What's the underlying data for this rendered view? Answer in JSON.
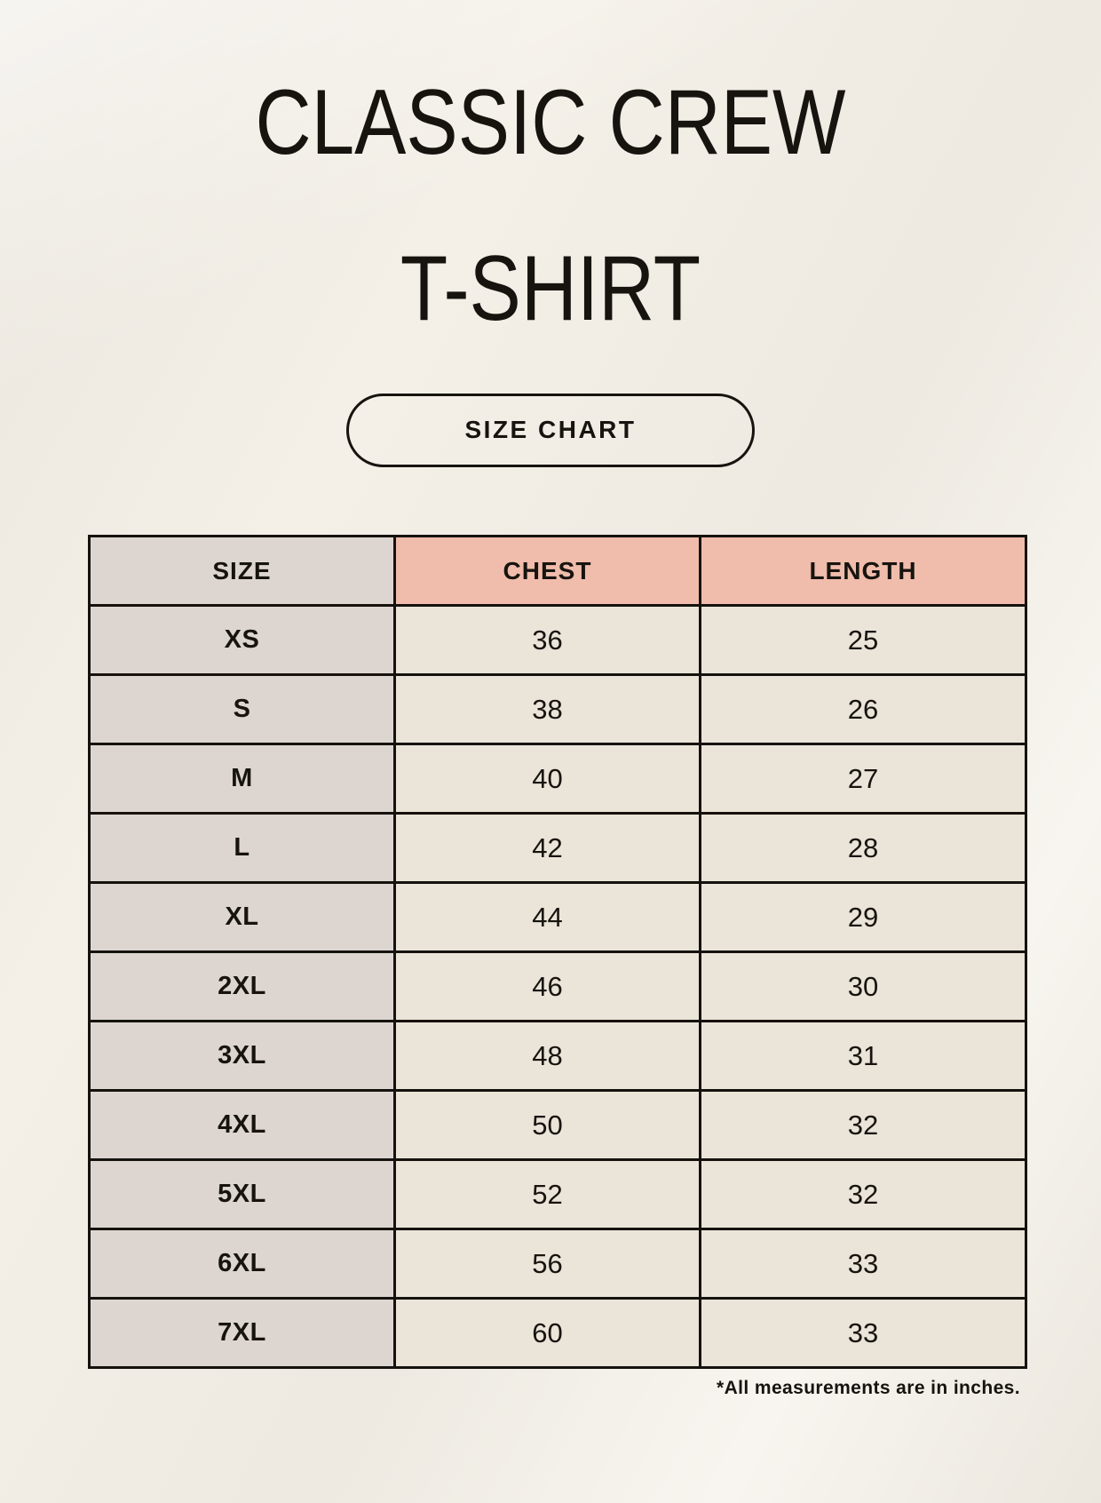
{
  "page": {
    "title_line1": "CLASSIC CREW",
    "title_line2": "T-SHIRT",
    "button_label": "SIZE CHART",
    "footnote": "*All measurements are in inches."
  },
  "colors": {
    "background": "#f4f0e8",
    "header_accent_salmon": "#f0bcab",
    "size_column_gray": "#ddd6d0",
    "data_cell_cream": "#eae4d9",
    "border_black": "#15120e",
    "text_black": "#17140f"
  },
  "chart_data": {
    "type": "table",
    "title": "Classic Crew T-Shirt Size Chart",
    "units": "inches",
    "columns": [
      "SIZE",
      "CHEST",
      "LENGTH"
    ],
    "rows": [
      [
        "XS",
        "36",
        "25"
      ],
      [
        "S",
        "38",
        "26"
      ],
      [
        "M",
        "40",
        "27"
      ],
      [
        "L",
        "42",
        "28"
      ],
      [
        "XL",
        "44",
        "29"
      ],
      [
        "2XL",
        "46",
        "30"
      ],
      [
        "3XL",
        "48",
        "31"
      ],
      [
        "4XL",
        "50",
        "32"
      ],
      [
        "5XL",
        "52",
        "32"
      ],
      [
        "6XL",
        "56",
        "33"
      ],
      [
        "7XL",
        "60",
        "33"
      ]
    ]
  }
}
